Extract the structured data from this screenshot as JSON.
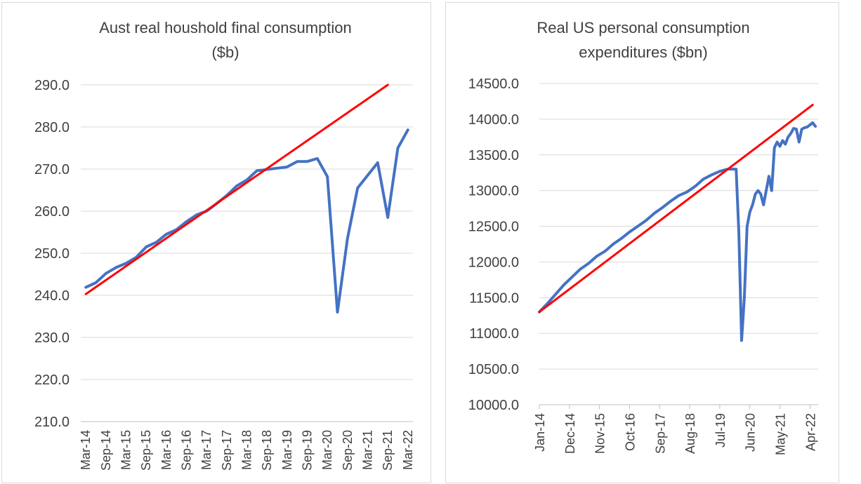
{
  "chart_data": [
    {
      "type": "line",
      "title_line1": "Aust real houshold final consumption",
      "title_line2": "($b)",
      "ylim": [
        210,
        290
      ],
      "yticks": [
        "290.0",
        "280.0",
        "270.0",
        "260.0",
        "250.0",
        "240.0",
        "230.0",
        "220.0",
        "210.0"
      ],
      "ytick_values": [
        290,
        280,
        270,
        260,
        250,
        240,
        230,
        220,
        210
      ],
      "xticks": [
        "Mar-14",
        "Sep-14",
        "Mar-15",
        "Sep-15",
        "Mar-16",
        "Sep-16",
        "Mar-17",
        "Sep-17",
        "Mar-18",
        "Sep-18",
        "Mar-19",
        "Sep-19",
        "Mar-20",
        "Sep-20",
        "Mar-21",
        "Sep-21",
        "Mar-22"
      ],
      "series": [
        {
          "color": "#4472c4",
          "x": [
            "Mar-14",
            "Jun-14",
            "Sep-14",
            "Dec-14",
            "Mar-15",
            "Jun-15",
            "Sep-15",
            "Dec-15",
            "Mar-16",
            "Jun-16",
            "Sep-16",
            "Dec-16",
            "Mar-17",
            "Jun-17",
            "Sep-17",
            "Dec-17",
            "Mar-18",
            "Jun-18",
            "Sep-18",
            "Dec-18",
            "Mar-19",
            "Jun-19",
            "Sep-19",
            "Dec-19",
            "Mar-20",
            "Jun-20",
            "Sep-20",
            "Dec-20",
            "Mar-21",
            "Jun-21",
            "Sep-21",
            "Dec-21",
            "Mar-22"
          ],
          "values": [
            241.9,
            243.0,
            245.2,
            246.6,
            247.6,
            249.0,
            251.5,
            252.6,
            254.5,
            255.6,
            257.5,
            259.1,
            260.0,
            261.8,
            263.7,
            266.0,
            267.4,
            269.6,
            269.9,
            270.2,
            270.5,
            271.8,
            271.8,
            272.5,
            268.2,
            236.0,
            253.5,
            265.5,
            268.5,
            271.5,
            258.5,
            275.0,
            279.3
          ]
        },
        {
          "color": "#ff0000",
          "x": [
            "Mar-14",
            "Sep-21"
          ],
          "values": [
            240.3,
            290.0
          ]
        }
      ],
      "grid": true,
      "legend": "none"
    },
    {
      "type": "line",
      "title_line1": "Real US personal consumption",
      "title_line2": "expenditures ($bn)",
      "ylim": [
        10000,
        14500
      ],
      "yticks": [
        "14500.0",
        "14000.0",
        "13500.0",
        "13000.0",
        "12500.0",
        "12000.0",
        "11500.0",
        "11000.0",
        "10500.0",
        "10000.0"
      ],
      "ytick_values": [
        14500,
        14000,
        13500,
        13000,
        12500,
        12000,
        11500,
        11000,
        10500,
        10000
      ],
      "xticks": [
        "Jan-14",
        "Dec-14",
        "Nov-15",
        "Oct-16",
        "Sep-17",
        "Aug-18",
        "Jul-19",
        "Jun-20",
        "May-21",
        "Apr-22"
      ],
      "series": [
        {
          "color": "#4472c4",
          "month_index": [
            0,
            3,
            6,
            9,
            12,
            15,
            18,
            21,
            24,
            27,
            30,
            33,
            36,
            39,
            42,
            45,
            48,
            51,
            54,
            57,
            60,
            63,
            66,
            69,
            72,
            73,
            74,
            75,
            76,
            77,
            78,
            79,
            80,
            81,
            82,
            84,
            85,
            86,
            87,
            88,
            89,
            90,
            91,
            92,
            93,
            94,
            95,
            96,
            97,
            98,
            99,
            100,
            101
          ],
          "values": [
            11300,
            11420,
            11550,
            11680,
            11790,
            11900,
            11980,
            12080,
            12150,
            12250,
            12330,
            12420,
            12500,
            12580,
            12680,
            12760,
            12850,
            12930,
            12980,
            13060,
            13160,
            13220,
            13270,
            13300,
            13300,
            12400,
            10900,
            11500,
            12500,
            12700,
            12800,
            12950,
            13000,
            12950,
            12800,
            13200,
            13000,
            13600,
            13680,
            13620,
            13700,
            13650,
            13750,
            13800,
            13870,
            13860,
            13680,
            13860,
            13880,
            13890,
            13920,
            13950,
            13900
          ]
        },
        {
          "color": "#ff0000",
          "month_index": [
            0,
            100
          ],
          "values": [
            11300,
            14200
          ]
        }
      ],
      "grid": true,
      "legend": "none"
    }
  ]
}
